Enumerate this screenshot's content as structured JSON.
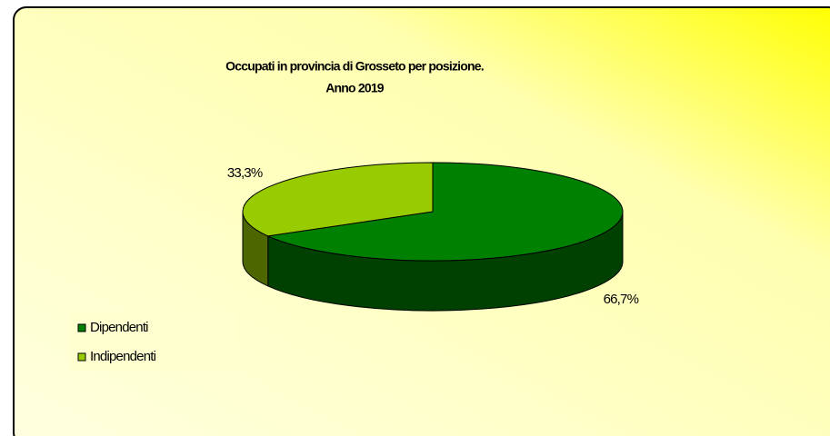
{
  "chart_data": {
    "type": "pie",
    "title": "Occupati in provincia di Grosseto per posizione.",
    "subtitle": "Anno 2019",
    "categories": [
      "Dipendenti",
      "Indipendenti"
    ],
    "values": [
      66.7,
      33.3
    ],
    "value_labels": [
      "66,7%",
      "33,3%"
    ],
    "colors": [
      "#008000",
      "#99cc00"
    ],
    "legend": "bottom-left"
  }
}
